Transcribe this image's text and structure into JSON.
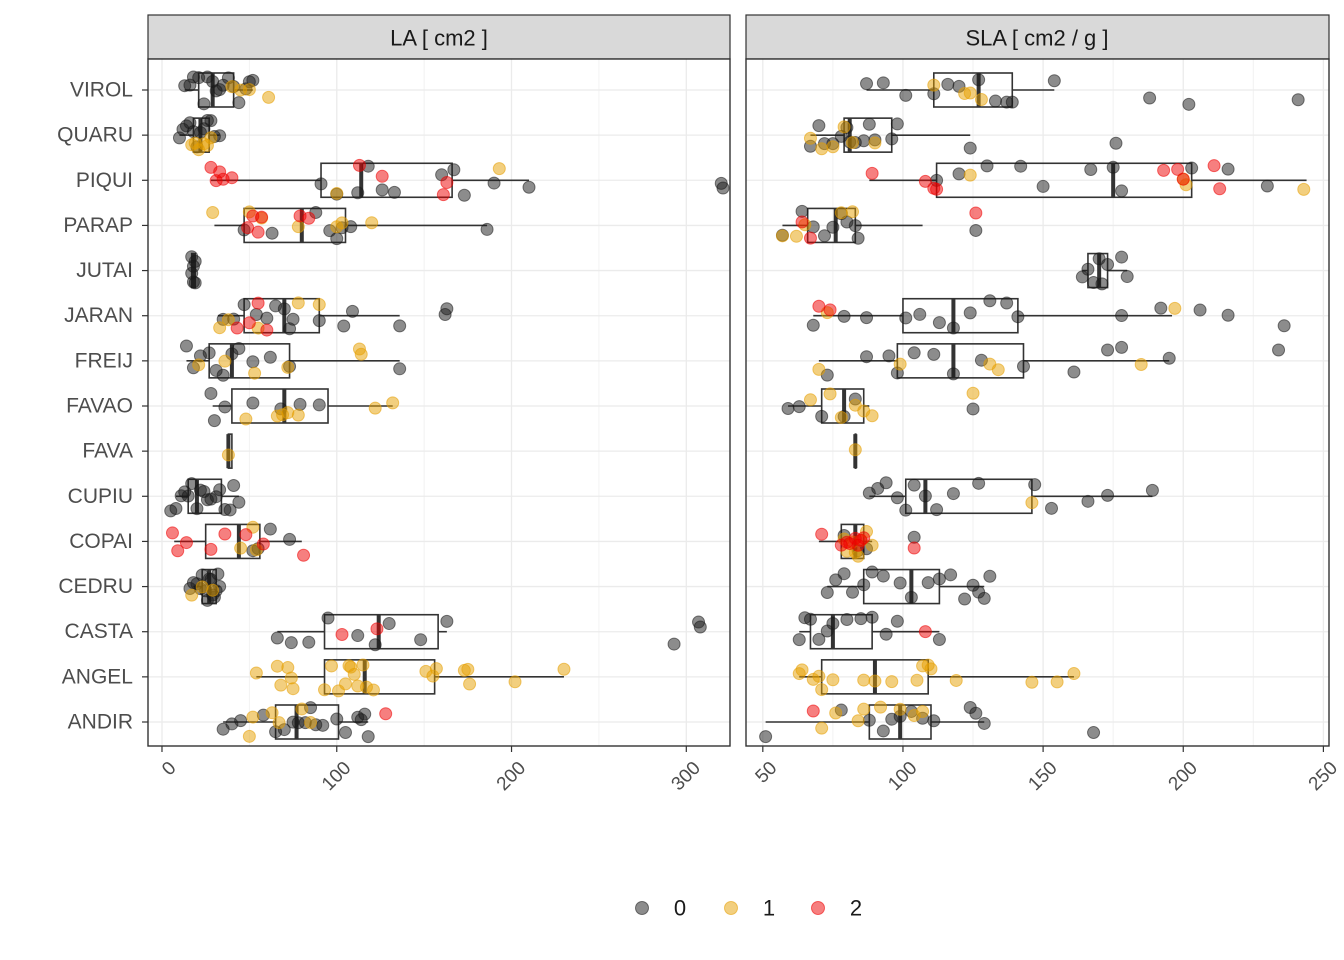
{
  "chart_data": {
    "type": "boxplot",
    "categories": [
      "ANDIR",
      "ANGEL",
      "CASTA",
      "CEDRU",
      "COPAI",
      "CUPIU",
      "FAVA",
      "FAVAO",
      "FREIJ",
      "JARAN",
      "JUTAI",
      "PARAP",
      "PIQUI",
      "QUARU",
      "VIROL"
    ],
    "legend": {
      "position": "bottom",
      "entries": [
        {
          "label": "0",
          "color": "#1a1a1a"
        },
        {
          "label": "1",
          "color": "#E69F00"
        },
        {
          "label": "2",
          "color": "#EE0000"
        }
      ]
    },
    "grid": true,
    "panels": [
      {
        "title": "LA [ cm2 ]",
        "xlim": [
          -8,
          325
        ],
        "xticks": [
          0,
          100,
          200,
          300
        ],
        "boxes": {
          "VIROL": [
            13,
            21,
            29,
            41,
            52
          ],
          "QUARU": [
            10,
            18,
            22,
            27,
            33
          ],
          "PIQUI": [
            28,
            91,
            114,
            166,
            210
          ],
          "PARAP": [
            30,
            47,
            80,
            105,
            186
          ],
          "JUTAI": [
            17,
            17,
            18,
            19,
            19
          ],
          "JARAN": [
            32,
            47,
            70,
            90,
            136
          ],
          "FREIJ": [
            14,
            27,
            40,
            73,
            136
          ],
          "FAVAO": [
            29,
            40,
            70,
            95,
            132
          ],
          "FAVA": [
            38,
            38,
            38,
            40,
            40
          ],
          "CUPIU": [
            8,
            15,
            20,
            34,
            44
          ],
          "COPAI": [
            7,
            25,
            44,
            56,
            80
          ],
          "CEDRU": [
            18,
            23,
            27,
            31,
            33
          ],
          "CASTA": [
            66,
            93,
            124,
            158,
            163
          ],
          "ANGEL": [
            54,
            93,
            116,
            156,
            230
          ],
          "ANDIR": [
            35,
            65,
            77,
            101,
            118
          ]
        },
        "points": {
          "0": {
            "VIROL": [
              13,
              16,
              18,
              21,
              24,
              26,
              29,
              31,
              33,
              35,
              38,
              41,
              44,
              48,
              50,
              52
            ],
            "QUARU": [
              10,
              12,
              14,
              16,
              18,
              20,
              22,
              24,
              26,
              28,
              30,
              33
            ],
            "PIQUI": [
              91,
              100,
              112,
              118,
              126,
              133,
              160,
              167,
              173,
              190,
              210,
              320,
              321
            ],
            "PARAP": [
              47,
              63,
              88,
              96,
              100,
              103,
              108,
              186
            ],
            "JUTAI": [
              17,
              17,
              18,
              18,
              19,
              19
            ],
            "JARAN": [
              35,
              41,
              47,
              54,
              60,
              65,
              70,
              73,
              75,
              90,
              104,
              109,
              136,
              162,
              163
            ],
            "FREIJ": [
              14,
              18,
              22,
              27,
              31,
              35,
              40,
              44,
              52,
              62,
              73,
              136
            ],
            "FAVAO": [
              28,
              30,
              36,
              52,
              68,
              79,
              90
            ],
            "FAVA": [],
            "CUPIU": [
              5,
              8,
              11,
              13,
              15,
              17,
              20,
              22,
              24,
              26,
              28,
              31,
              33,
              36,
              39,
              41,
              44
            ],
            "COPAI": [
              52,
              55,
              62,
              73
            ],
            "CEDRU": [
              16,
              18,
              20,
              22,
              23,
              25,
              26,
              27,
              28,
              29,
              30,
              31,
              32,
              33
            ],
            "CASTA": [
              66,
              74,
              84,
              95,
              112,
              122,
              130,
              148,
              163,
              293,
              307,
              308
            ],
            "ANGEL": [],
            "ANDIR": [
              35,
              40,
              45,
              58,
              65,
              70,
              75,
              78,
              82,
              85,
              88,
              92,
              100,
              105,
              112,
              114,
              116,
              118
            ]
          },
          "1": {
            "VIROL": [
              40,
              45,
              50,
              61
            ],
            "QUARU": [
              17,
              19,
              21,
              24,
              26,
              28
            ],
            "PIQUI": [
              100,
              193
            ],
            "PARAP": [
              29,
              50,
              57,
              78,
              100,
              103,
              120
            ],
            "JUTAI": [],
            "JARAN": [
              33,
              38,
              55,
              78,
              90
            ],
            "FREIJ": [
              21,
              36,
              53,
              72,
              113,
              114
            ],
            "FAVAO": [
              48,
              66,
              69,
              72,
              78,
              122,
              132
            ],
            "FAVA": [
              38
            ],
            "CUPIU": [],
            "COPAI": [
              45,
              52,
              54
            ],
            "CEDRU": [
              17,
              23,
              29
            ],
            "CASTA": [],
            "ANGEL": [
              54,
              66,
              68,
              72,
              74,
              75,
              93,
              97,
              101,
              105,
              107,
              108,
              110,
              112,
              115,
              117,
              121,
              151,
              155,
              157,
              173,
              175,
              176,
              202,
              230
            ],
            "ANDIR": [
              50,
              52,
              63,
              67,
              80,
              85
            ]
          },
          "2": {
            "VIROL": [],
            "QUARU": [],
            "PIQUI": [
              28,
              31,
              33,
              35,
              40,
              113,
              126,
              161,
              163
            ],
            "PARAP": [
              49,
              52,
              55,
              57,
              79,
              84
            ],
            "JUTAI": [],
            "JARAN": [
              43,
              50,
              55,
              60
            ],
            "FREIJ": [],
            "FAVAO": [],
            "FAVA": [],
            "CUPIU": [],
            "COPAI": [
              6,
              9,
              14,
              28,
              36,
              48,
              58,
              81
            ],
            "CEDRU": [],
            "CASTA": [
              103,
              123
            ],
            "ANGEL": [],
            "ANDIR": [
              128
            ]
          }
        }
      },
      {
        "title": "SLA [ cm2 / g ]",
        "xlim": [
          44,
          252
        ],
        "xticks": [
          50,
          100,
          150,
          200,
          250
        ],
        "boxes": {
          "VIROL": [
            87,
            111,
            127,
            139,
            154
          ],
          "QUARU": [
            67,
            79,
            81,
            96,
            124
          ],
          "PIQUI": [
            88,
            112,
            175,
            203,
            244
          ],
          "PARAP": [
            57,
            66,
            76,
            83,
            107
          ],
          "JUTAI": [
            164,
            166,
            170,
            173,
            180
          ],
          "JARAN": [
            68,
            100,
            118,
            141,
            196
          ],
          "FREIJ": [
            70,
            98,
            118,
            143,
            195
          ],
          "FAVAO": [
            59,
            71,
            79,
            86,
            88
          ],
          "FAVA": [
            83,
            83,
            83,
            83,
            83
          ],
          "CUPIU": [
            88,
            101,
            108,
            146,
            189
          ],
          "COPAI": [
            70,
            78,
            83,
            86,
            89
          ],
          "CEDRU": [
            73,
            86,
            103,
            113,
            129
          ],
          "CASTA": [
            63,
            67,
            75,
            89,
            113
          ],
          "ANGEL": [
            63,
            71,
            90,
            109,
            161
          ],
          "ANDIR": [
            51,
            88,
            99,
            110,
            129
          ]
        },
        "points": {
          "0": {
            "VIROL": [
              87,
              93,
              101,
              111,
              116,
              120,
              127,
              133,
              137,
              139,
              154,
              188,
              202,
              241
            ],
            "QUARU": [
              67,
              70,
              72,
              75,
              78,
              80,
              81,
              83,
              86,
              88,
              90,
              96,
              98,
              124,
              176
            ],
            "PIQUI": [
              112,
              120,
              130,
              142,
              150,
              167,
              175,
              178,
              203,
              216,
              230
            ],
            "PARAP": [
              57,
              64,
              68,
              72,
              75,
              78,
              80,
              83,
              84,
              126
            ],
            "JUTAI": [
              164,
              166,
              168,
              170,
              171,
              173,
              178,
              180
            ],
            "JARAN": [
              68,
              79,
              87,
              101,
              106,
              113,
              118,
              124,
              131,
              137,
              141,
              178,
              192,
              206,
              216,
              236
            ],
            "FREIJ": [
              73,
              87,
              95,
              98,
              104,
              111,
              118,
              128,
              143,
              161,
              173,
              178,
              195,
              234
            ],
            "FAVAO": [
              59,
              63,
              71,
              79,
              83,
              125
            ],
            "FAVA": [],
            "CUPIU": [
              88,
              91,
              94,
              98,
              101,
              104,
              108,
              112,
              118,
              127,
              147,
              153,
              166,
              173,
              189
            ],
            "COPAI": [
              79,
              84,
              87,
              104
            ],
            "CEDRU": [
              73,
              76,
              79,
              82,
              86,
              89,
              93,
              99,
              103,
              109,
              113,
              117,
              122,
              125,
              127,
              129,
              131
            ],
            "CASTA": [
              63,
              65,
              67,
              70,
              73,
              75,
              80,
              85,
              89,
              94,
              98,
              113
            ],
            "ANGEL": [],
            "ANDIR": [
              51,
              78,
              88,
              93,
              96,
              99,
              103,
              107,
              111,
              124,
              126,
              129,
              168
            ]
          },
          "1": {
            "VIROL": [
              111,
              122,
              124,
              128
            ],
            "QUARU": [
              67,
              71,
              75,
              79,
              82,
              90
            ],
            "PIQUI": [
              124,
              200,
              201,
              243
            ],
            "PARAP": [
              57,
              62,
              65,
              78,
              82
            ],
            "JUTAI": [],
            "JARAN": [
              73,
              197
            ],
            "FREIJ": [
              70,
              99,
              131,
              134,
              185
            ],
            "FAVAO": [
              67,
              74,
              78,
              83,
              86,
              89,
              125
            ],
            "FAVA": [
              83
            ],
            "CUPIU": [
              146
            ],
            "COPAI": [
              79,
              80,
              82,
              83,
              84,
              85,
              87,
              89
            ],
            "CEDRU": [],
            "CASTA": [],
            "ANGEL": [
              63,
              64,
              68,
              70,
              71,
              75,
              86,
              90,
              96,
              105,
              107,
              109,
              110,
              119,
              146,
              155,
              161
            ],
            "ANDIR": [
              71,
              76,
              84,
              86,
              92,
              99,
              104,
              107
            ]
          },
          "2": {
            "VIROL": [],
            "QUARU": [],
            "PIQUI": [
              89,
              108,
              111,
              112,
              193,
              198,
              200,
              211,
              213
            ],
            "PARAP": [
              64,
              67,
              126
            ],
            "JUTAI": [],
            "JARAN": [
              70,
              74
            ],
            "FREIJ": [],
            "FAVAO": [],
            "FAVA": [],
            "CUPIU": [],
            "COPAI": [
              71,
              78,
              80,
              81,
              83,
              84,
              85,
              86,
              104
            ],
            "CEDRU": [],
            "CASTA": [
              108
            ],
            "ANGEL": [],
            "ANDIR": [
              68
            ]
          }
        }
      }
    ]
  }
}
